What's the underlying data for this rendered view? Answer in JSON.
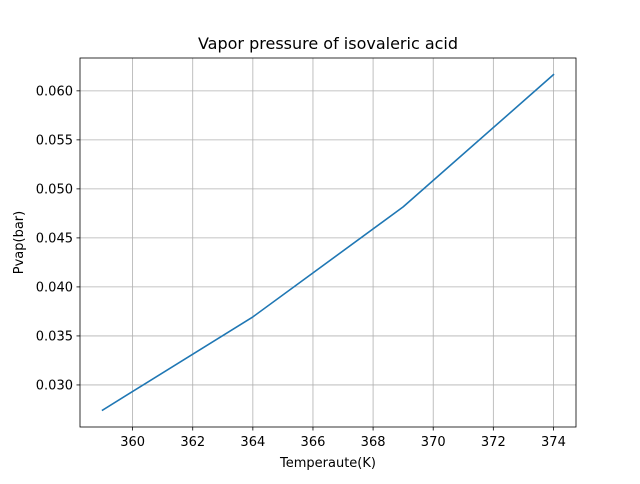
{
  "chart_data": {
    "type": "line",
    "title": "Vapor pressure of isovaleric acid",
    "xlabel": "Temperaute(K)",
    "ylabel": "Pvap(bar)",
    "xlim": [
      358.25,
      374.75
    ],
    "ylim": [
      0.02571,
      0.06335
    ],
    "xticks": [
      360,
      362,
      364,
      366,
      368,
      370,
      372,
      374
    ],
    "xtick_labels": [
      "360",
      "362",
      "364",
      "366",
      "368",
      "370",
      "372",
      "374"
    ],
    "yticks": [
      0.03,
      0.035,
      0.04,
      0.045,
      0.05,
      0.055,
      0.06
    ],
    "ytick_labels": [
      "0.030",
      "0.035",
      "0.040",
      "0.045",
      "0.050",
      "0.055",
      "0.060"
    ],
    "grid": true,
    "legend": false,
    "series": [
      {
        "color": "#1f77b4",
        "x": [
          359,
          364,
          369,
          374
        ],
        "y": [
          0.02743,
          0.03694,
          0.04816,
          0.06165
        ]
      }
    ]
  }
}
